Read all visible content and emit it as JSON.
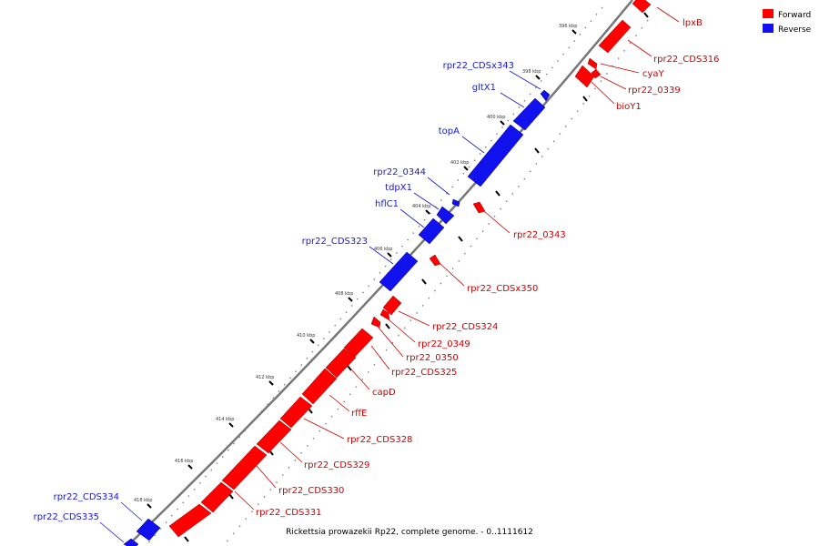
{
  "caption": "Rickettsia prowazekii Rp22, complete genome. - 0..1111612",
  "legend": [
    {
      "label": "Forward",
      "color": "#ff0000"
    },
    {
      "label": "Reverse",
      "color": "#1111ee"
    }
  ],
  "ticks": [
    "396 kbp",
    "398 kbp",
    "400 kbp",
    "402 kbp",
    "404 kbp",
    "406 kbp",
    "408 kbp",
    "410 kbp",
    "412 kbp",
    "414 kbp",
    "416 kbp",
    "418 kbp"
  ],
  "forward_genes": [
    "lpxB",
    "rpr22_CDS316",
    "cyaY",
    "rpr22_0339",
    "bioY1",
    "rpr22_0343",
    "rpr22_CDSx350",
    "rpr22_CDS324",
    "rpr22_0349",
    "rpr22_0350",
    "rpr22_CDS325",
    "capD",
    "rffE",
    "rpr22_CDS328",
    "rpr22_CDS329",
    "rpr22_CDS330",
    "rpr22_CDS331"
  ],
  "reverse_genes": [
    "rpr22_CDSx343",
    "gltX1",
    "topA",
    "rpr22_0344",
    "tdpX1",
    "hflC1",
    "rpr22_CDS323",
    "rpr22_CDS334",
    "rpr22_CDS335"
  ]
}
